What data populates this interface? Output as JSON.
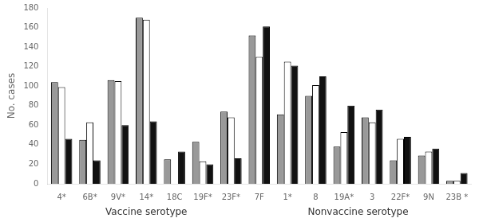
{
  "chart_data": {
    "type": "bar",
    "categories": [
      "4*",
      "6B*",
      "9V*",
      "14*",
      "18C",
      "19F*",
      "23F*",
      "7F",
      "1*",
      "8",
      "19A*",
      "3",
      "22F*",
      "9N",
      "23B *"
    ],
    "series": [
      {
        "color": "#999999",
        "values": [
          104,
          45,
          106,
          170,
          25,
          43,
          74,
          152,
          71,
          90,
          38,
          68,
          24,
          29,
          3
        ]
      },
      {
        "color": "#ffffff",
        "values": [
          99,
          63,
          105,
          168,
          0,
          23,
          68,
          130,
          125,
          101,
          53,
          63,
          46,
          33,
          3
        ]
      },
      {
        "color": "#111111",
        "values": [
          46,
          24,
          60,
          64,
          33,
          20,
          26,
          161,
          121,
          110,
          80,
          76,
          48,
          36,
          11
        ]
      }
    ],
    "ylabel": "No. cases",
    "groups": [
      {
        "label": "Vaccine serotype",
        "categories": [
          "4*",
          "6B*",
          "9V*",
          "14*",
          "18C",
          "19F*",
          "23F*"
        ]
      },
      {
        "label": "Nonvaccine serotype",
        "categories": [
          "7F",
          "1*",
          "8",
          "19A*",
          "3",
          "22F*",
          "9N",
          "23B *"
        ]
      }
    ],
    "ylim": [
      0,
      180
    ],
    "yticks": [
      0,
      20,
      40,
      60,
      80,
      100,
      120,
      140,
      160,
      180
    ],
    "grid": false
  }
}
